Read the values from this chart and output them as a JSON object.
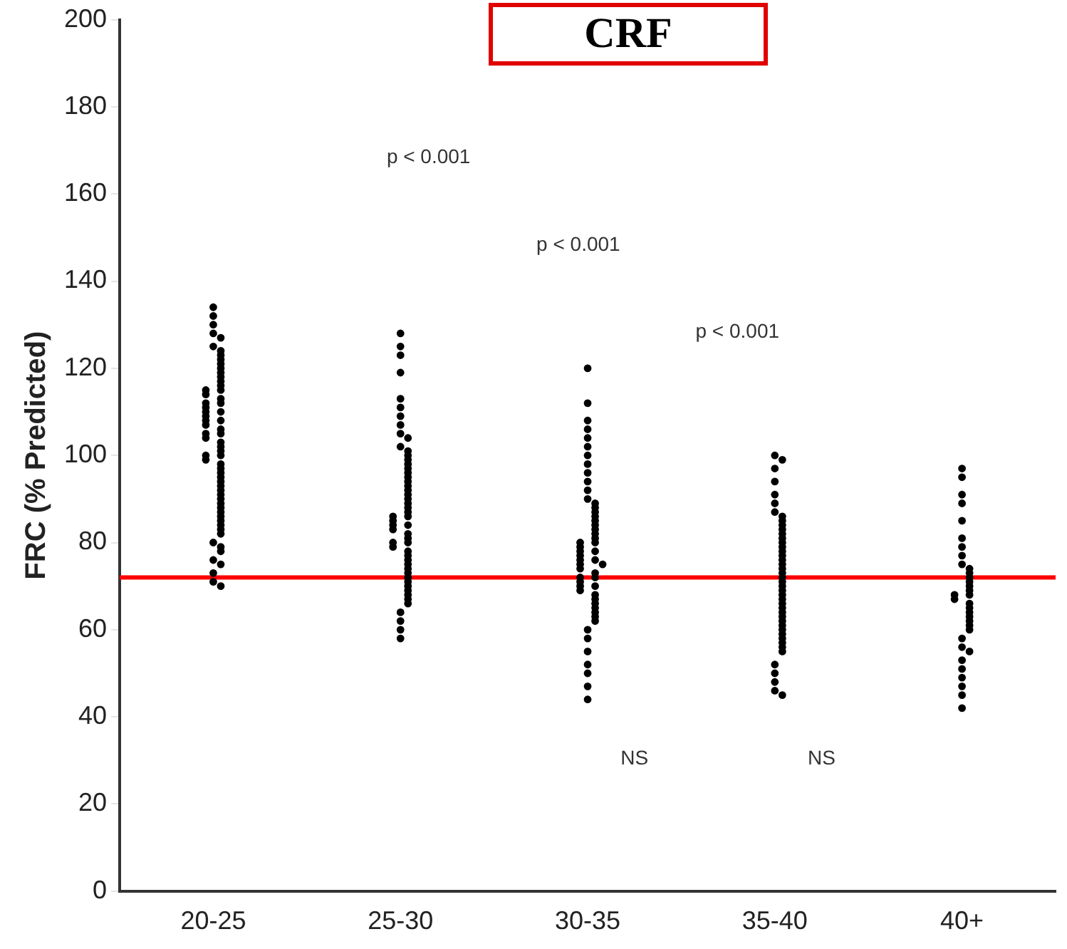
{
  "chart_data": {
    "type": "scatter",
    "title": "CRF",
    "ylabel": "FRC (% Predicted)",
    "categories": [
      "20-25",
      "25-30",
      "30-35",
      "35-40",
      "40+"
    ],
    "ylim": [
      0,
      200
    ],
    "yticks": [
      0,
      20,
      40,
      60,
      80,
      100,
      120,
      140,
      160,
      180,
      200
    ],
    "grid": false,
    "legend": false,
    "marker": "circle",
    "series": [
      {
        "color": "#000000",
        "x": [
          "20-25",
          "20-25",
          "20-25",
          "20-25",
          "20-25",
          "20-25",
          "20-25",
          "20-25",
          "20-25",
          "20-25",
          "20-25",
          "20-25",
          "20-25",
          "20-25",
          "20-25",
          "20-25",
          "20-25",
          "20-25",
          "20-25",
          "20-25",
          "20-25",
          "20-25",
          "20-25",
          "20-25",
          "20-25",
          "20-25",
          "20-25",
          "20-25",
          "20-25",
          "20-25",
          "20-25",
          "20-25",
          "20-25",
          "20-25",
          "20-25",
          "20-25",
          "20-25",
          "20-25",
          "20-25",
          "20-25",
          "20-25",
          "20-25",
          "20-25",
          "20-25",
          "20-25",
          "20-25",
          "20-25",
          "20-25",
          "20-25",
          "20-25",
          "20-25",
          "20-25",
          "20-25",
          "20-25",
          "20-25",
          "20-25",
          "20-25",
          "20-25",
          "20-25",
          "20-25",
          "20-25",
          "20-25",
          "20-25"
        ],
        "values": [
          134,
          132,
          130,
          128,
          127,
          125,
          124,
          123,
          122,
          121,
          120,
          119,
          118,
          117,
          116,
          115,
          115,
          114,
          113,
          112,
          112,
          111,
          110,
          110,
          109,
          108,
          108,
          107,
          106,
          105,
          105,
          104,
          103,
          102,
          101,
          100,
          100,
          99,
          98,
          97,
          96,
          95,
          94,
          93,
          92,
          91,
          90,
          89,
          88,
          87,
          86,
          85,
          84,
          83,
          82,
          80,
          79,
          78,
          76,
          75,
          73,
          71,
          70
        ]
      },
      {
        "color": "#000000",
        "x": [
          "25-30",
          "25-30",
          "25-30",
          "25-30",
          "25-30",
          "25-30",
          "25-30",
          "25-30",
          "25-30",
          "25-30",
          "25-30",
          "25-30",
          "25-30",
          "25-30",
          "25-30",
          "25-30",
          "25-30",
          "25-30",
          "25-30",
          "25-30",
          "25-30",
          "25-30",
          "25-30",
          "25-30",
          "25-30",
          "25-30",
          "25-30",
          "25-30",
          "25-30",
          "25-30",
          "25-30",
          "25-30",
          "25-30",
          "25-30",
          "25-30",
          "25-30",
          "25-30",
          "25-30",
          "25-30",
          "25-30",
          "25-30",
          "25-30",
          "25-30",
          "25-30",
          "25-30",
          "25-30",
          "25-30",
          "25-30",
          "25-30",
          "25-30",
          "25-30",
          "25-30",
          "25-30",
          "25-30"
        ],
        "values": [
          128,
          125,
          123,
          119,
          113,
          111,
          109,
          107,
          105,
          104,
          102,
          101,
          100,
          99,
          98,
          97,
          96,
          95,
          94,
          93,
          92,
          91,
          90,
          89,
          88,
          87,
          86,
          86,
          85,
          84,
          84,
          83,
          82,
          81,
          80,
          80,
          79,
          78,
          77,
          76,
          75,
          74,
          73,
          72,
          71,
          70,
          69,
          68,
          67,
          66,
          64,
          62,
          60,
          58
        ]
      },
      {
        "color": "#000000",
        "x": [
          "30-35",
          "30-35",
          "30-35",
          "30-35",
          "30-35",
          "30-35",
          "30-35",
          "30-35",
          "30-35",
          "30-35",
          "30-35",
          "30-35",
          "30-35",
          "30-35",
          "30-35",
          "30-35",
          "30-35",
          "30-35",
          "30-35",
          "30-35",
          "30-35",
          "30-35",
          "30-35",
          "30-35",
          "30-35",
          "30-35",
          "30-35",
          "30-35",
          "30-35",
          "30-35",
          "30-35",
          "30-35",
          "30-35",
          "30-35",
          "30-35",
          "30-35",
          "30-35",
          "30-35",
          "30-35",
          "30-35",
          "30-35",
          "30-35",
          "30-35",
          "30-35",
          "30-35",
          "30-35",
          "30-35",
          "30-35",
          "30-35",
          "30-35",
          "30-35",
          "30-35",
          "30-35"
        ],
        "values": [
          120,
          112,
          108,
          106,
          104,
          102,
          100,
          98,
          96,
          94,
          92,
          90,
          89,
          88,
          87,
          86,
          85,
          84,
          83,
          82,
          81,
          80,
          80,
          79,
          78,
          78,
          77,
          76,
          76,
          75,
          75,
          74,
          73,
          72,
          72,
          71,
          70,
          70,
          69,
          68,
          67,
          66,
          65,
          64,
          63,
          62,
          60,
          58,
          55,
          52,
          50,
          47,
          44
        ]
      },
      {
        "color": "#000000",
        "x": [
          "35-40",
          "35-40",
          "35-40",
          "35-40",
          "35-40",
          "35-40",
          "35-40",
          "35-40",
          "35-40",
          "35-40",
          "35-40",
          "35-40",
          "35-40",
          "35-40",
          "35-40",
          "35-40",
          "35-40",
          "35-40",
          "35-40",
          "35-40",
          "35-40",
          "35-40",
          "35-40",
          "35-40",
          "35-40",
          "35-40",
          "35-40",
          "35-40",
          "35-40",
          "35-40",
          "35-40",
          "35-40",
          "35-40",
          "35-40",
          "35-40",
          "35-40",
          "35-40",
          "35-40",
          "35-40",
          "35-40",
          "35-40",
          "35-40",
          "35-40",
          "35-40"
        ],
        "values": [
          100,
          99,
          97,
          94,
          91,
          89,
          87,
          86,
          85,
          84,
          83,
          82,
          81,
          80,
          79,
          78,
          77,
          76,
          75,
          74,
          73,
          72,
          71,
          70,
          69,
          68,
          67,
          66,
          65,
          64,
          63,
          62,
          61,
          60,
          59,
          58,
          57,
          56,
          55,
          52,
          50,
          48,
          46,
          45
        ]
      },
      {
        "color": "#000000",
        "x": [
          "40+",
          "40+",
          "40+",
          "40+",
          "40+",
          "40+",
          "40+",
          "40+",
          "40+",
          "40+",
          "40+",
          "40+",
          "40+",
          "40+",
          "40+",
          "40+",
          "40+",
          "40+",
          "40+",
          "40+",
          "40+",
          "40+",
          "40+",
          "40+",
          "40+",
          "40+",
          "40+",
          "40+",
          "40+",
          "40+",
          "40+",
          "40+",
          "40+",
          "40+"
        ],
        "values": [
          97,
          95,
          91,
          89,
          85,
          81,
          79,
          77,
          75,
          74,
          73,
          72,
          71,
          70,
          69,
          68,
          68,
          67,
          66,
          65,
          64,
          63,
          62,
          61,
          60,
          58,
          56,
          55,
          53,
          51,
          49,
          47,
          45,
          42
        ]
      }
    ],
    "ref_lines": [
      {
        "axis": "y",
        "value": 72,
        "color": "#ff0000"
      }
    ],
    "annotations": [
      "p < 0.001",
      "p < 0.001",
      "p < 0.001",
      "NS",
      "NS"
    ]
  }
}
